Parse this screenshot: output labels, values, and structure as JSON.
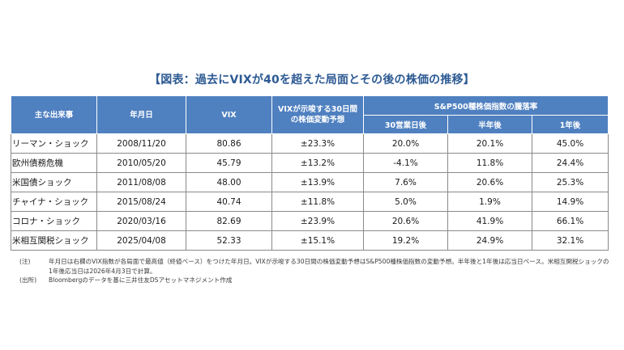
{
  "title": "【図表：過去にVIXが40を超えた局面とその後の株価の推移】",
  "headers": {
    "event": "主な出来事",
    "date": "年月日",
    "vix": "VIX",
    "implied_line1": "VIXが示唆する30日間",
    "implied_line2": "の株価変動予想",
    "sp_group": "S&P500種株価指数の騰落率",
    "d30": "30営業日後",
    "h6": "半年後",
    "y1": "1年後"
  },
  "rows": [
    {
      "event": "リーマン・ショック",
      "date": "2008/11/20",
      "vix": "80.86",
      "implied": "±23.3%",
      "d30": "20.0%",
      "h6": "20.1%",
      "y1": "45.0%"
    },
    {
      "event": "欧州債務危機",
      "date": "2010/05/20",
      "vix": "45.79",
      "implied": "±13.2%",
      "d30": "-4.1%",
      "h6": "11.8%",
      "y1": "24.4%"
    },
    {
      "event": "米国債ショック",
      "date": "2011/08/08",
      "vix": "48.00",
      "implied": "±13.9%",
      "d30": "7.6%",
      "h6": "20.6%",
      "y1": "25.3%"
    },
    {
      "event": "チャイナ・ショック",
      "date": "2015/08/24",
      "vix": "40.74",
      "implied": "±11.8%",
      "d30": "5.0%",
      "h6": "1.9%",
      "y1": "14.9%"
    },
    {
      "event": "コロナ・ショック",
      "date": "2020/03/16",
      "vix": "82.69",
      "implied": "±23.9%",
      "d30": "20.6%",
      "h6": "41.9%",
      "y1": "66.1%"
    },
    {
      "event": "米相互関税ショック",
      "date": "2025/04/08",
      "vix": "52.33",
      "implied": "±15.1%",
      "d30": "19.2%",
      "h6": "24.9%",
      "y1": "32.1%"
    }
  ],
  "notes": {
    "note_label": "(注)",
    "note_text": "年月日は右欄のVIX指数が各局面で最高値（終値ベース）をつけた年月日。VIXが示唆する30日間の株価変動予想はS&P500種株価指数の変動予想。半年後と1年後は応当日ベース。米相互関税ショックの1年後応当日は2026年4月3日で計算。",
    "source_label": "(出所)",
    "source_text": "Bloombergのデータを基に三井住友DSアセットマネジメント作成"
  },
  "colors": {
    "header_bg": "#4f80c0",
    "title": "#2d5a93"
  }
}
